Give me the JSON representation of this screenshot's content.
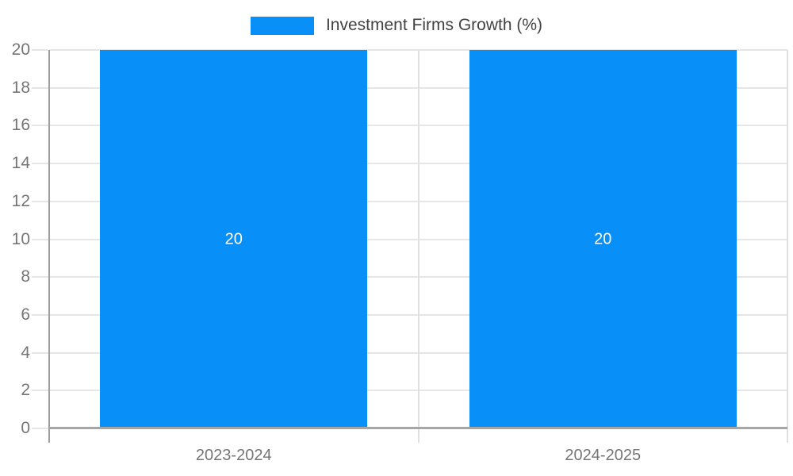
{
  "legend": {
    "label": "Investment Firms Growth (%)"
  },
  "chart_data": {
    "type": "bar",
    "title": "Investment Firms Growth (%)",
    "categories": [
      "2023-2024",
      "2024-2025"
    ],
    "series": [
      {
        "name": "Investment Firms Growth (%)",
        "values": [
          20,
          20
        ]
      }
    ],
    "values": [
      20,
      20
    ],
    "bar_labels": [
      "20",
      "20"
    ],
    "xlabel": "",
    "ylabel": "",
    "ylim": [
      0,
      20
    ],
    "yticks": [
      0,
      2,
      4,
      6,
      8,
      10,
      12,
      14,
      16,
      18,
      20
    ],
    "grid": true,
    "legend_position": "top",
    "colors": {
      "bar": "#0890F8",
      "axis_line": "#a6a6a6",
      "gridline": "#e6e6e6",
      "tick_label": "#757575",
      "legend_text": "#424242",
      "bar_label": "#ffffff",
      "background": "#ffffff"
    }
  }
}
